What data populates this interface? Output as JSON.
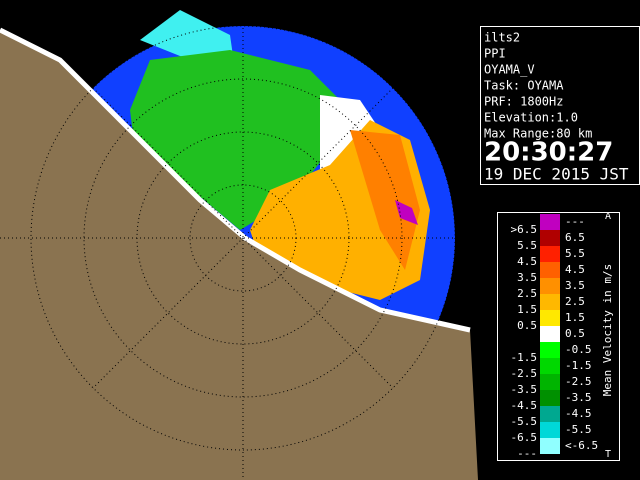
{
  "info": {
    "lines": [
      "ilts2",
      "PPI",
      "OYAMA_V",
      "Task: OYAMA",
      "PRF: 1800Hz",
      "Elevation:1.0",
      "Max Range:80 km"
    ],
    "time": "20:30:27",
    "date": "19 DEC 2015 JST"
  },
  "legend": {
    "title": "Mean Velocity in m/s",
    "top_mark": "A",
    "bottom_mark": "T",
    "rows": [
      {
        "left": ">6.5",
        "right": "---",
        "color": "#c000c0"
      },
      {
        "left": "5.5",
        "right": "6.5",
        "color": "#b00000"
      },
      {
        "left": "4.5",
        "right": "5.5",
        "color": "#ff2000"
      },
      {
        "left": "3.5",
        "right": "4.5",
        "color": "#ff6000"
      },
      {
        "left": "2.5",
        "right": "3.5",
        "color": "#ff9000"
      },
      {
        "left": "1.5",
        "right": "2.5",
        "color": "#ffb800"
      },
      {
        "left": "0.5",
        "right": "1.5",
        "color": "#ffe800"
      },
      {
        "left": null,
        "right": "0.5",
        "color": "#ffffff"
      },
      {
        "left": "-1.5",
        "right": "-0.5",
        "color": "#00ff00"
      },
      {
        "left": "-2.5",
        "right": "-1.5",
        "color": "#00d800"
      },
      {
        "left": "-3.5",
        "right": "-2.5",
        "color": "#00b400"
      },
      {
        "left": "-4.5",
        "right": "-3.5",
        "color": "#009000"
      },
      {
        "left": "-5.5",
        "right": "-4.5",
        "color": "#00a890"
      },
      {
        "left": "-6.5",
        "right": "-5.5",
        "color": "#00d8d8"
      },
      {
        "left": "---",
        "right": "<-6.5",
        "color": "#90ffff"
      }
    ]
  }
}
